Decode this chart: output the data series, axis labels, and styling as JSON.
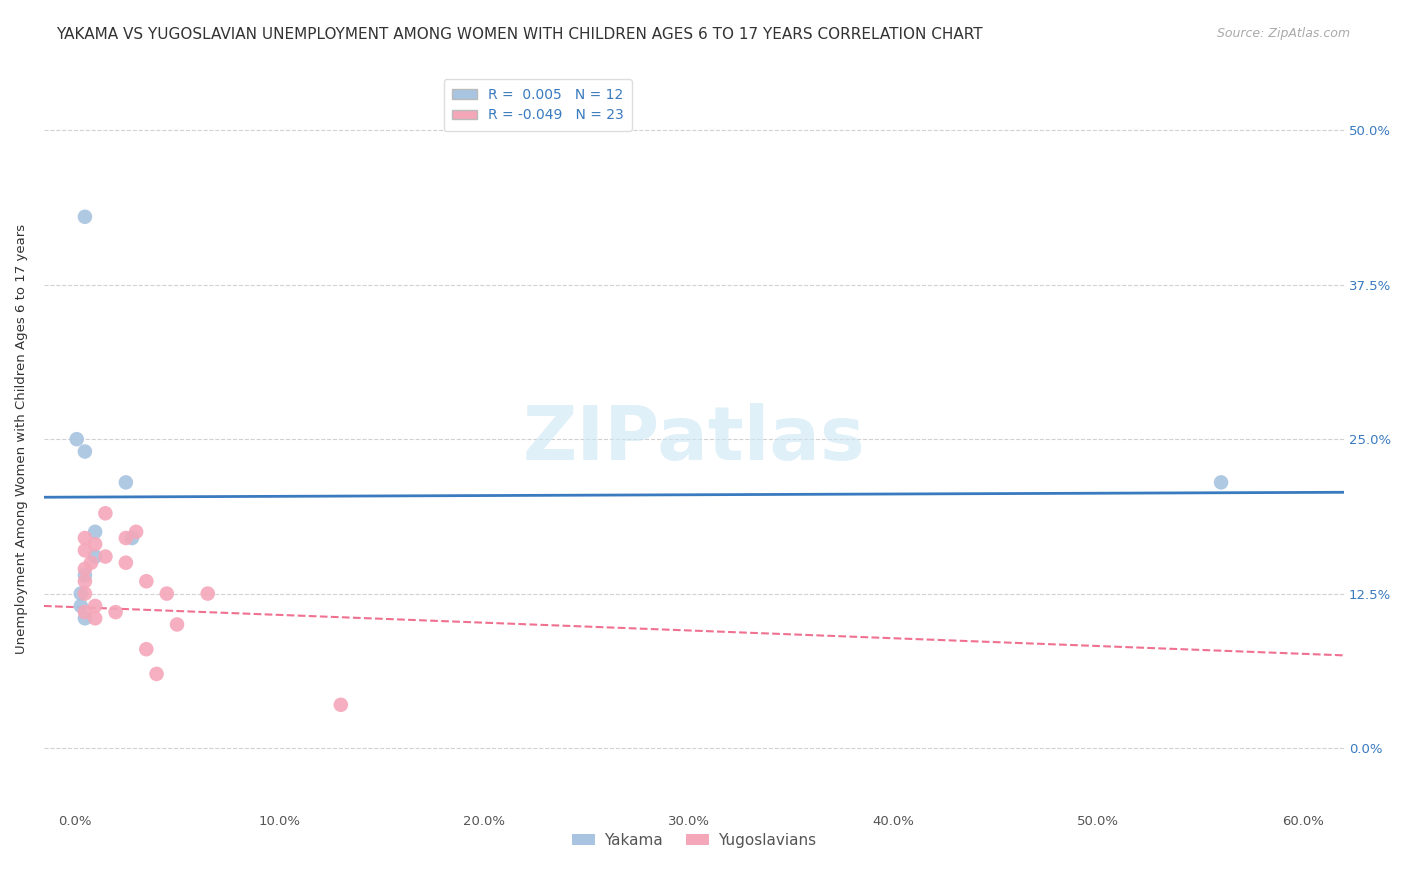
{
  "title": "YAKAMA VS YUGOSLAVIAN UNEMPLOYMENT AMONG WOMEN WITH CHILDREN AGES 6 TO 17 YEARS CORRELATION CHART",
  "source": "Source: ZipAtlas.com",
  "xlabel_ticks": [
    "0.0%",
    "10.0%",
    "20.0%",
    "30.0%",
    "40.0%",
    "50.0%",
    "60.0%"
  ],
  "xlabel_vals": [
    0.0,
    10.0,
    20.0,
    30.0,
    40.0,
    50.0,
    60.0
  ],
  "ylabel_ticks": [
    "0.0%",
    "12.5%",
    "25.0%",
    "37.5%",
    "50.0%"
  ],
  "ylabel_vals": [
    0.0,
    12.5,
    25.0,
    37.5,
    50.0
  ],
  "ylabel_label": "Unemployment Among Women with Children Ages 6 to 17 years",
  "xlim": [
    -1.5,
    62
  ],
  "ylim": [
    -5,
    55
  ],
  "watermark": "ZIPatlas",
  "yakama_R": 0.005,
  "yakama_N": 12,
  "yugo_R": -0.049,
  "yugo_N": 23,
  "yakama_color": "#a8c4e0",
  "yugo_color": "#f4a7b9",
  "yakama_line_color": "#3a7abf",
  "yugo_line_color": "#f07090",
  "yakama_line_x": [
    -1.5,
    62
  ],
  "yakama_line_y": [
    20.3,
    20.7
  ],
  "yugo_line_x": [
    -1.5,
    62
  ],
  "yugo_line_y": [
    11.5,
    7.5
  ],
  "yakama_scatter": [
    [
      0.5,
      43.0
    ],
    [
      0.1,
      25.0
    ],
    [
      0.5,
      24.0
    ],
    [
      2.5,
      21.5
    ],
    [
      1.0,
      17.5
    ],
    [
      2.8,
      17.0
    ],
    [
      1.0,
      15.5
    ],
    [
      0.5,
      14.0
    ],
    [
      0.3,
      12.5
    ],
    [
      0.3,
      11.5
    ],
    [
      0.5,
      10.5
    ],
    [
      56.0,
      21.5
    ]
  ],
  "yugo_scatter": [
    [
      1.5,
      19.0
    ],
    [
      3.0,
      17.5
    ],
    [
      2.5,
      17.0
    ],
    [
      0.5,
      17.0
    ],
    [
      1.0,
      16.5
    ],
    [
      0.5,
      16.0
    ],
    [
      1.5,
      15.5
    ],
    [
      2.5,
      15.0
    ],
    [
      0.8,
      15.0
    ],
    [
      0.5,
      14.5
    ],
    [
      0.5,
      13.5
    ],
    [
      3.5,
      13.5
    ],
    [
      0.5,
      12.5
    ],
    [
      1.0,
      11.5
    ],
    [
      0.5,
      11.0
    ],
    [
      2.0,
      11.0
    ],
    [
      1.0,
      10.5
    ],
    [
      4.5,
      12.5
    ],
    [
      6.5,
      12.5
    ],
    [
      5.0,
      10.0
    ],
    [
      3.5,
      8.0
    ],
    [
      4.0,
      6.0
    ],
    [
      13.0,
      3.5
    ]
  ],
  "title_fontsize": 11,
  "axis_tick_fontsize": 9.5,
  "ylabel_fontsize": 9.5,
  "source_fontsize": 9,
  "legend_fontsize": 10,
  "marker_size": 110,
  "bg_color": "#ffffff",
  "grid_color": "#cccccc",
  "right_tick_color": "#3a7abf"
}
